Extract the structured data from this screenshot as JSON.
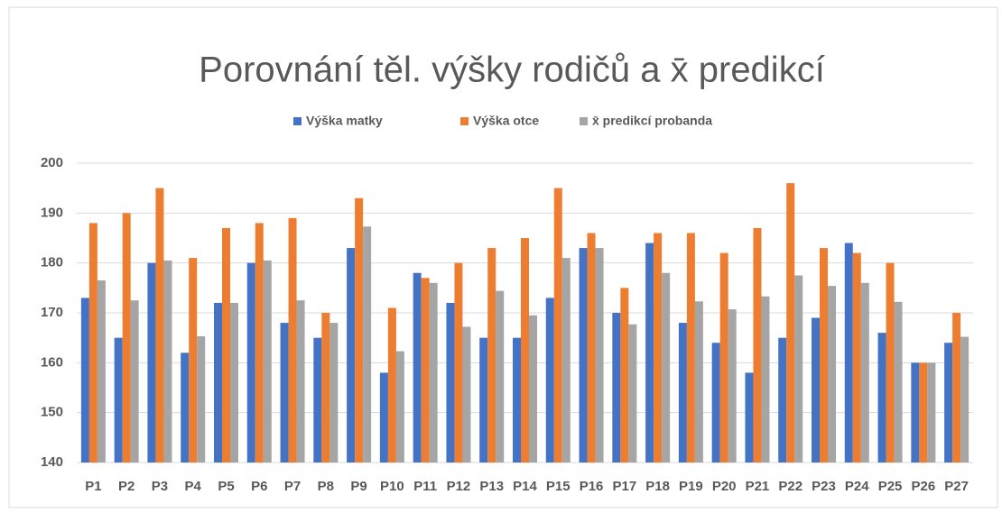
{
  "chart_data": {
    "type": "bar",
    "title": "Porovnání těl. výšky rodičů a x̄ predikcí",
    "categories": [
      "P1",
      "P2",
      "P3",
      "P4",
      "P5",
      "P6",
      "P7",
      "P8",
      "P9",
      "P10",
      "P11",
      "P12",
      "P13",
      "P14",
      "P15",
      "P16",
      "P17",
      "P18",
      "P19",
      "P20",
      "P21",
      "P22",
      "P23",
      "P24",
      "P25",
      "P26",
      "P27"
    ],
    "series": [
      {
        "name": "Výška matky",
        "color": "#4472c4",
        "values": [
          173,
          165,
          180,
          162,
          172,
          180,
          168,
          165,
          183,
          158,
          178,
          172,
          165,
          165,
          173,
          183,
          170,
          184,
          168,
          164,
          158,
          165,
          169,
          184,
          166,
          160,
          164
        ]
      },
      {
        "name": "Výška otce",
        "color": "#ed7d31",
        "values": [
          188,
          190,
          195,
          181,
          187,
          188,
          189,
          170,
          193,
          171,
          177,
          180,
          183,
          185,
          195,
          186,
          175,
          186,
          186,
          182,
          187,
          196,
          183,
          182,
          180,
          160,
          170
        ]
      },
      {
        "name": "x̄ predikcí probanda",
        "color": "#a5a5a5",
        "values": [
          176.5,
          172.5,
          180.5,
          165.3,
          172,
          180.5,
          172.5,
          168,
          187.3,
          162.3,
          176,
          167.2,
          174.4,
          169.5,
          181,
          183,
          167.7,
          178,
          172.3,
          170.7,
          173.3,
          177.5,
          175.4,
          176,
          172.2,
          160,
          165.2
        ]
      }
    ],
    "ylim": [
      140,
      200
    ],
    "yticks": [
      140,
      150,
      160,
      170,
      180,
      190,
      200
    ],
    "grid": true,
    "legend": "top"
  }
}
